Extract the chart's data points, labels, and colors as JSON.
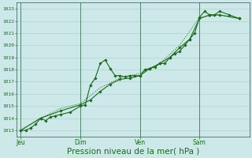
{
  "background_color": "#cce8e8",
  "grid_color": "#aacccc",
  "line_color": "#1a6b1a",
  "xlabel": "Pression niveau de la mer( hPa )",
  "xlabel_fontsize": 7.5,
  "ylim": [
    1012.5,
    1023.5
  ],
  "yticks": [
    1013,
    1014,
    1015,
    1016,
    1017,
    1018,
    1019,
    1020,
    1021,
    1022,
    1023
  ],
  "xtick_labels": [
    "Jeu",
    "Dim",
    "Ven",
    "Sam"
  ],
  "xtick_positions": [
    0,
    3.0,
    6.0,
    9.0
  ],
  "xlim": [
    -0.2,
    11.5
  ],
  "series1": [
    [
      0.0,
      1013.0
    ],
    [
      0.25,
      1013.0
    ],
    [
      0.5,
      1013.2
    ],
    [
      0.75,
      1013.5
    ],
    [
      1.0,
      1014.0
    ],
    [
      1.25,
      1013.8
    ],
    [
      1.5,
      1014.1
    ],
    [
      1.75,
      1014.2
    ],
    [
      2.0,
      1014.3
    ],
    [
      2.5,
      1014.5
    ],
    [
      3.0,
      1015.0
    ],
    [
      3.25,
      1015.1
    ],
    [
      3.5,
      1016.7
    ],
    [
      3.75,
      1017.3
    ],
    [
      4.0,
      1018.5
    ],
    [
      4.25,
      1018.8
    ],
    [
      4.5,
      1018.1
    ],
    [
      4.75,
      1017.5
    ],
    [
      5.0,
      1017.5
    ],
    [
      5.25,
      1017.4
    ],
    [
      5.5,
      1017.5
    ],
    [
      5.75,
      1017.5
    ],
    [
      6.0,
      1017.5
    ],
    [
      6.25,
      1018.0
    ],
    [
      6.5,
      1018.1
    ],
    [
      6.75,
      1018.2
    ],
    [
      7.0,
      1018.5
    ],
    [
      7.25,
      1018.5
    ],
    [
      7.5,
      1019.0
    ],
    [
      7.75,
      1019.3
    ],
    [
      8.0,
      1019.5
    ],
    [
      8.25,
      1020.0
    ],
    [
      8.5,
      1020.5
    ],
    [
      8.75,
      1021.0
    ],
    [
      9.0,
      1022.3
    ],
    [
      9.25,
      1022.8
    ],
    [
      9.5,
      1022.5
    ],
    [
      9.75,
      1022.5
    ],
    [
      10.0,
      1022.8
    ],
    [
      10.5,
      1022.5
    ],
    [
      11.0,
      1022.2
    ]
  ],
  "series2": [
    [
      0.0,
      1013.0
    ],
    [
      1.0,
      1014.0
    ],
    [
      2.0,
      1014.6
    ],
    [
      3.0,
      1015.1
    ],
    [
      3.5,
      1015.5
    ],
    [
      4.0,
      1016.2
    ],
    [
      4.5,
      1016.8
    ],
    [
      5.0,
      1017.2
    ],
    [
      5.5,
      1017.3
    ],
    [
      6.0,
      1017.5
    ],
    [
      6.5,
      1018.1
    ],
    [
      7.0,
      1018.5
    ],
    [
      7.5,
      1019.0
    ],
    [
      8.0,
      1019.8
    ],
    [
      8.5,
      1020.5
    ],
    [
      9.0,
      1022.2
    ],
    [
      9.5,
      1022.5
    ],
    [
      10.0,
      1022.5
    ],
    [
      11.0,
      1022.2
    ]
  ],
  "series3_dotted": [
    [
      0.0,
      1013.0
    ],
    [
      1.0,
      1014.0
    ],
    [
      2.0,
      1014.8
    ],
    [
      3.0,
      1015.2
    ],
    [
      4.0,
      1016.5
    ],
    [
      5.0,
      1017.3
    ],
    [
      6.0,
      1017.7
    ],
    [
      7.0,
      1018.5
    ],
    [
      8.0,
      1020.0
    ],
    [
      9.0,
      1022.3
    ],
    [
      10.0,
      1022.5
    ],
    [
      11.0,
      1022.2
    ]
  ]
}
